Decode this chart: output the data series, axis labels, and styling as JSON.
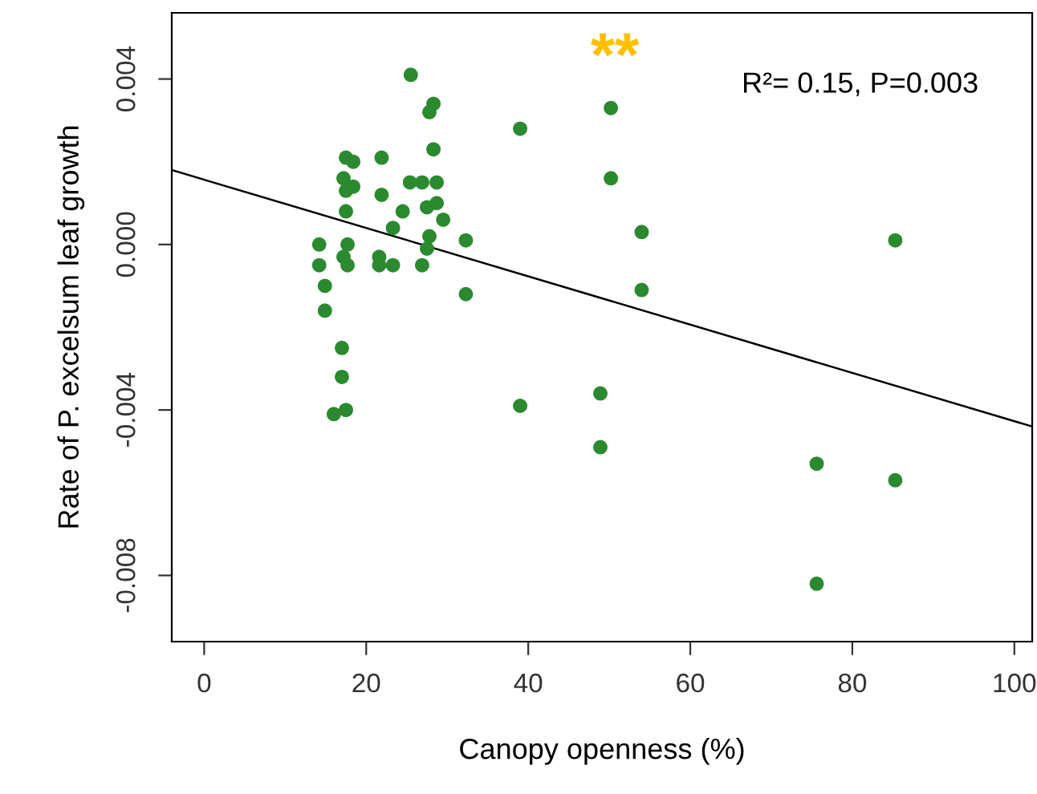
{
  "chart_data": {
    "type": "scatter",
    "xlabel": "Canopy openness (%)",
    "ylabel": "Rate of P. excelsum leaf growth",
    "annotations": [
      "**",
      "R²= 0.15, P=0.003"
    ],
    "series": [
      {
        "color": "#2b8a2f",
        "marker": "circle",
        "x": [
          25.5,
          28.3,
          27.8,
          39.0,
          28.3,
          17.5,
          18.4,
          21.9,
          17.2,
          17.5,
          18.4,
          21.9,
          25.4,
          26.9,
          28.7,
          24.5,
          17.5,
          27.5,
          28.7,
          29.5,
          23.3,
          27.8,
          32.3,
          14.2,
          17.7,
          27.5,
          17.2,
          21.6,
          14.2,
          17.7,
          21.6,
          23.3,
          26.9,
          14.9,
          32.3,
          14.9,
          17.0,
          17.0,
          16.0,
          17.5,
          39.0,
          50.2,
          50.2,
          54.0,
          54.0,
          85.3,
          48.9,
          48.9,
          75.6,
          85.3,
          75.6
        ],
        "values": [
          0.0041,
          0.0034,
          0.0032,
          0.0028,
          0.0023,
          0.0021,
          0.002,
          0.0021,
          0.0016,
          0.0013,
          0.0014,
          0.0012,
          0.0015,
          0.0015,
          0.0015,
          0.0008,
          0.0008,
          0.0009,
          0.001,
          0.0006,
          0.0004,
          0.0002,
          0.0001,
          0.0,
          0.0,
          -0.0001,
          -0.0003,
          -0.0003,
          -0.0005,
          -0.0005,
          -0.0005,
          -0.0005,
          -0.0005,
          -0.001,
          -0.0012,
          -0.0016,
          -0.0025,
          -0.0032,
          -0.0041,
          -0.004,
          -0.0039,
          0.0033,
          0.0016,
          0.0003,
          -0.0011,
          0.0001,
          -0.0036,
          -0.0049,
          -0.0053,
          -0.0057,
          -0.0082
        ]
      },
      {
        "type": "line",
        "color": "#000000",
        "line_style": "solid",
        "x": [
          -4,
          102.2
        ],
        "values": [
          0.0018,
          -0.0044
        ]
      }
    ],
    "xlim": [
      -4,
      102.2
    ],
    "xticks": [
      0,
      20,
      40,
      60,
      80,
      100
    ],
    "ylim": [
      -0.0096,
      0.0056
    ],
    "yticks": [
      {
        "value": 0.004,
        "label": "0.004"
      },
      {
        "value": 0.0,
        "label": "0.000"
      },
      {
        "value": -0.004,
        "label": "-0.004"
      },
      {
        "value": -0.008,
        "label": "-0.008"
      }
    ],
    "grid": false,
    "legend": false
  }
}
